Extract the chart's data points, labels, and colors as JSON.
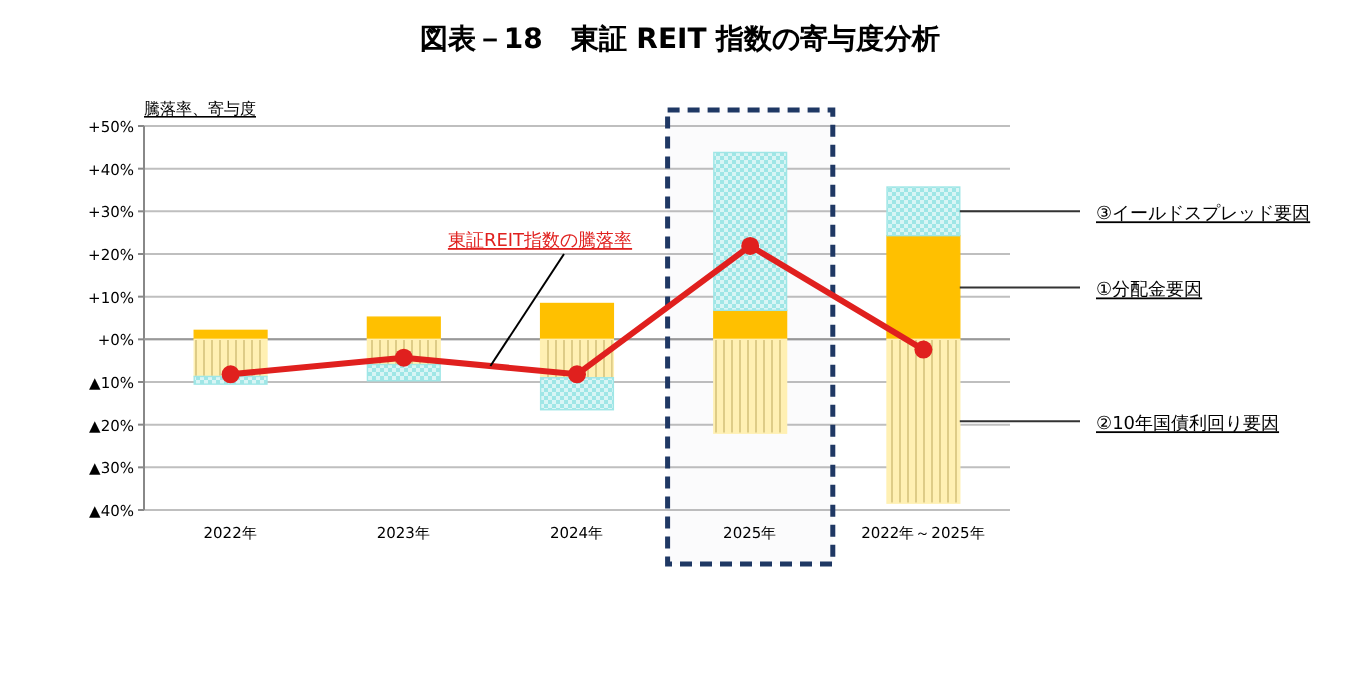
{
  "chart_data": {
    "type": "bar",
    "title": "図表－18　東証 REIT 指数の寄与度分析",
    "ylabel": "騰落率、寄与度",
    "categories": [
      "2022年",
      "2023年",
      "2024年",
      "2025年",
      "2022年～2025年"
    ],
    "stacked": true,
    "series": [
      {
        "name": "①分配金要因",
        "color": "#ffc000",
        "values": [
          2.1,
          5.2,
          8.4,
          6.8,
          24.3
        ]
      },
      {
        "name": "②10年国債利回り要因",
        "color": "#fff0b3",
        "values": [
          -8.7,
          -5.9,
          -9.0,
          -22.0,
          -38.4
        ]
      },
      {
        "name": "③イールドスプレッド要因",
        "color": "#9fe6e6",
        "values": [
          -1.8,
          -3.8,
          -7.5,
          37.0,
          11.4
        ]
      },
      {
        "name": "東証REIT指数の騰落率",
        "type": "line",
        "color": "#e0201e",
        "marker": "circle",
        "values": [
          -8.2,
          -4.3,
          -8.2,
          21.9,
          -2.4
        ]
      }
    ],
    "ylim": [
      -40,
      50
    ],
    "yticks": [
      {
        "value": -40,
        "label": "▲40%"
      },
      {
        "value": -30,
        "label": "▲30%"
      },
      {
        "value": -20,
        "label": "▲20%"
      },
      {
        "value": -10,
        "label": "▲10%"
      },
      {
        "value": 0,
        "label": "+0%"
      },
      {
        "value": 10,
        "label": "+10%"
      },
      {
        "value": 20,
        "label": "+20%"
      },
      {
        "value": 30,
        "label": "+30%"
      },
      {
        "value": 40,
        "label": "+40%"
      },
      {
        "value": 50,
        "label": "+50%"
      }
    ],
    "grid": "y",
    "legend": "right",
    "bands": [
      {
        "axis": "x",
        "from": "2025年",
        "to": "2025年",
        "color": "#1f3864"
      }
    ]
  }
}
